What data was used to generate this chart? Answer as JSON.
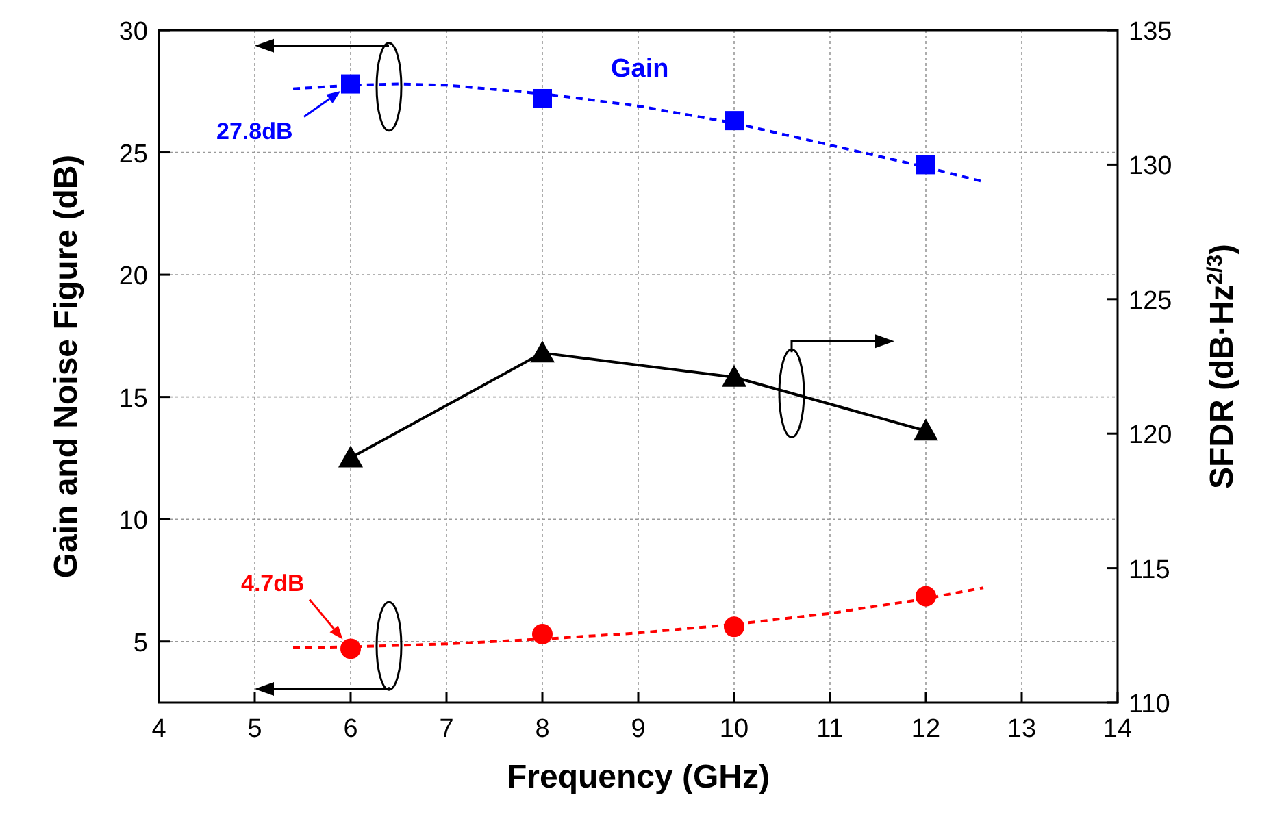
{
  "chart_data": {
    "type": "scatter",
    "xlabel": "Frequency (GHz)",
    "ylabel": "Gain and Noise Figure (dB)",
    "y2label": "SFDR (dB·Hz$^{2/3}$)",
    "xlim": [
      4,
      14
    ],
    "xticks": [
      4,
      5,
      6,
      7,
      8,
      9,
      10,
      11,
      12,
      13,
      14
    ],
    "ylim": [
      2.5,
      30
    ],
    "yticks": [
      5,
      10,
      15,
      20,
      25,
      30
    ],
    "y2lim": [
      110,
      135
    ],
    "y2ticks": [
      110,
      115,
      120,
      125,
      130,
      135
    ],
    "grid": true,
    "legend": false,
    "series": [
      {
        "name": "Gain",
        "marker": "square",
        "color": "#0000ff",
        "x": [
          6,
          8,
          10,
          12
        ],
        "values": [
          27.8,
          27.2,
          26.3,
          24.5
        ]
      },
      {
        "type": "line",
        "marker": "none",
        "line_style": "dashed",
        "color": "#0000ff",
        "x": [
          5.4,
          6,
          6.5,
          7,
          8,
          9,
          10,
          11,
          12,
          12.6
        ],
        "values": [
          27.6,
          27.75,
          27.8,
          27.75,
          27.4,
          26.9,
          26.2,
          25.3,
          24.4,
          23.8
        ]
      },
      {
        "type": "line",
        "marker": "triangle",
        "line_style": "solid",
        "axis": "y2",
        "color": "#000000",
        "x": [
          6,
          8,
          10,
          12
        ],
        "values": [
          119.1,
          123.0,
          122.1,
          120.1
        ]
      },
      {
        "marker": "circle",
        "color": "#ff0000",
        "x": [
          6,
          8,
          10,
          12
        ],
        "values": [
          4.7,
          5.3,
          5.6,
          6.85
        ]
      },
      {
        "type": "line",
        "marker": "none",
        "line_style": "dashed",
        "color": "#ff0000",
        "x": [
          5.4,
          6,
          7,
          8,
          9,
          10,
          11,
          12,
          12.6
        ],
        "values": [
          4.75,
          4.78,
          4.9,
          5.1,
          5.35,
          5.7,
          6.15,
          6.75,
          7.2
        ]
      }
    ],
    "annotations": [
      {
        "text": "27.8dB",
        "x": 6,
        "y": 27.8
      },
      {
        "text": "4.7dB",
        "x": 6,
        "y": 4.7
      }
    ]
  }
}
